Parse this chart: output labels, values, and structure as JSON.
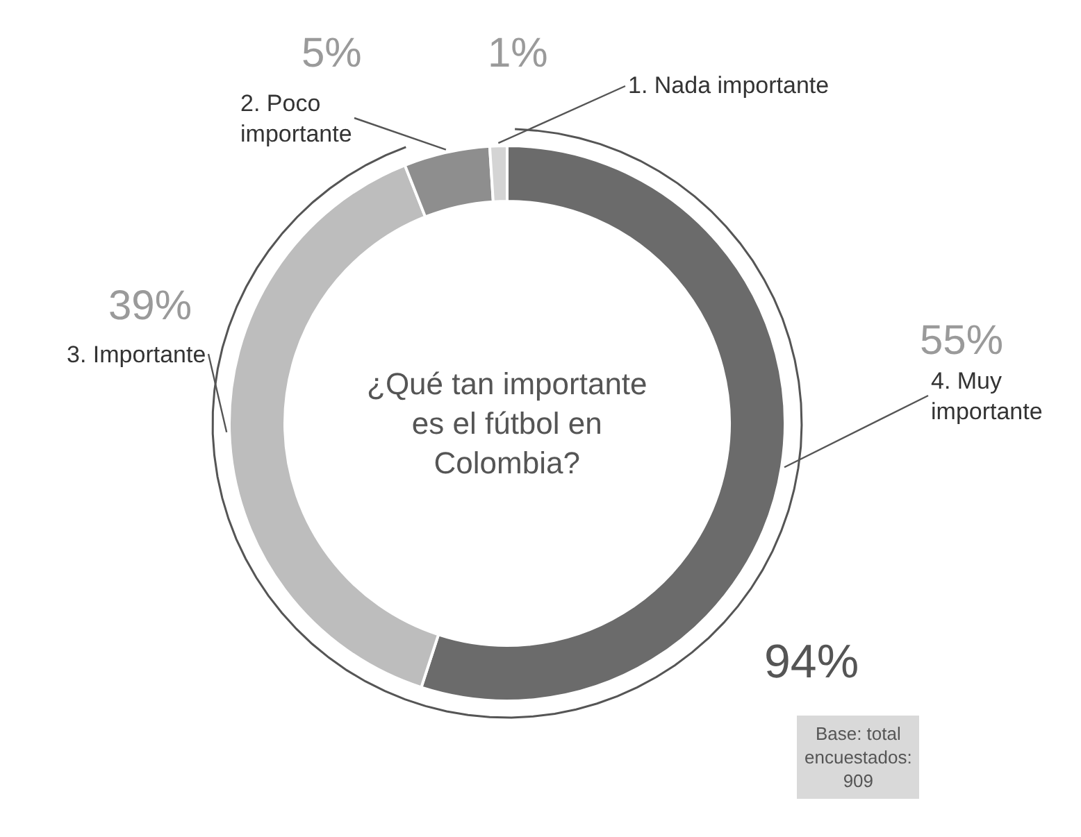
{
  "chart_data": {
    "type": "donut",
    "title": "¿Qué tan importante es el fútbol en Colombia?",
    "categories": [
      "4. Muy importante",
      "3. Importante",
      "2. Poco importante",
      "1. Nada importante"
    ],
    "values": [
      55,
      39,
      5,
      1
    ],
    "value_labels": [
      "55%",
      "39%",
      "5%",
      "1%"
    ],
    "colors": [
      "#6b6b6b",
      "#bdbdbd",
      "#8e8e8e",
      "#d4d4d4"
    ],
    "annotations": [
      "94%",
      "Base: total encuestados: 909"
    ],
    "legend": false
  }
}
